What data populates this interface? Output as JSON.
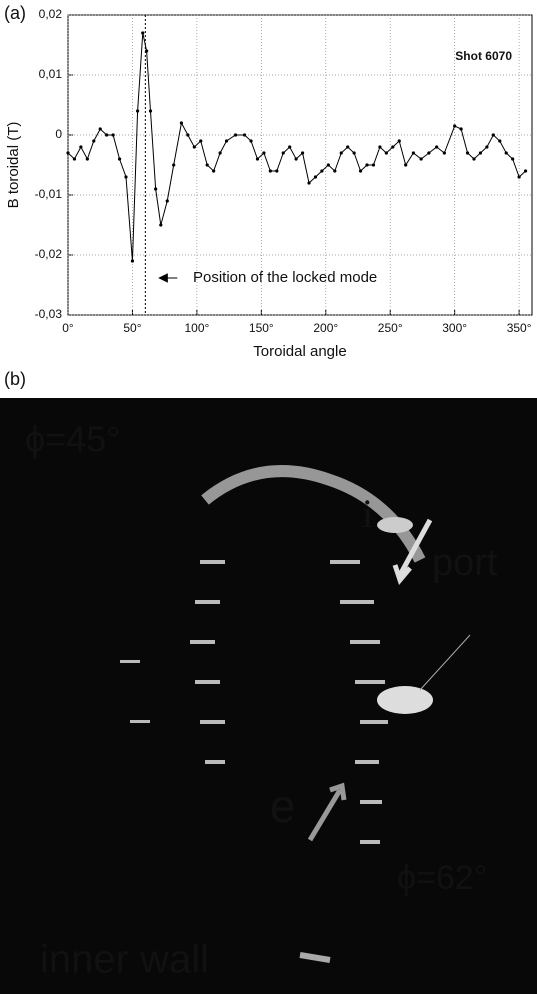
{
  "panel_labels": [
    "(a)",
    "(b)"
  ],
  "chart_data": {
    "type": "line",
    "x_label": "Toroidal angle",
    "y_label": "B toroidal (T)",
    "annotation_text": "Shot  6070",
    "locked_mode": {
      "text": "Position of the locked mode",
      "x": 60
    },
    "xlim": [
      0,
      360
    ],
    "xticks": [
      {
        "value": 0,
        "label": "0°"
      },
      {
        "value": 50,
        "label": "50°"
      },
      {
        "value": 100,
        "label": "100°"
      },
      {
        "value": 150,
        "label": "150°"
      },
      {
        "value": 200,
        "label": "200°"
      },
      {
        "value": 250,
        "label": "250°"
      },
      {
        "value": 300,
        "label": "300°"
      },
      {
        "value": 350,
        "label": "350°"
      }
    ],
    "ylim": [
      -0.03,
      0.02
    ],
    "yticks": [
      {
        "value": -0.03,
        "label": "-0,03"
      },
      {
        "value": -0.02,
        "label": "-0,02"
      },
      {
        "value": -0.01,
        "label": "-0,01"
      },
      0,
      {
        "value": 0.01,
        "label": "0,01"
      },
      {
        "value": 0.02,
        "label": "0,02"
      }
    ],
    "grid": true,
    "color": "#000000",
    "x": [
      0,
      5,
      10,
      15,
      20,
      25,
      30,
      35,
      40,
      45,
      50,
      54,
      58,
      61,
      64,
      68,
      72,
      77,
      82,
      88,
      93,
      98,
      103,
      108,
      113,
      118,
      123,
      130,
      137,
      142,
      147,
      152,
      157,
      162,
      167,
      172,
      177,
      182,
      187,
      192,
      197,
      202,
      207,
      212,
      217,
      222,
      227,
      232,
      237,
      242,
      247,
      252,
      257,
      262,
      268,
      274,
      280,
      286,
      292,
      300,
      305,
      310,
      315,
      320,
      325,
      330,
      335,
      340,
      345,
      350,
      355
    ],
    "values": [
      -0.003,
      -0.004,
      -0.002,
      -0.004,
      -0.001,
      0.001,
      0,
      0,
      -0.004,
      -0.007,
      -0.021,
      0.004,
      0.017,
      0.014,
      0.004,
      -0.009,
      -0.015,
      -0.011,
      -0.005,
      0.002,
      0,
      -0.002,
      -0.001,
      -0.005,
      -0.006,
      -0.003,
      -0.001,
      0,
      0,
      -0.001,
      -0.004,
      -0.003,
      -0.006,
      -0.006,
      -0.003,
      -0.002,
      -0.004,
      -0.003,
      -0.008,
      -0.007,
      -0.006,
      -0.005,
      -0.006,
      -0.003,
      -0.002,
      -0.003,
      -0.006,
      -0.005,
      -0.005,
      -0.002,
      -0.003,
      -0.002,
      -0.001,
      -0.005,
      -0.003,
      -0.004,
      -0.003,
      -0.002,
      -0.003,
      0.0015,
      0.001,
      -0.003,
      -0.004,
      -0.003,
      -0.002,
      0,
      -0.001,
      -0.003,
      -0.004,
      -0.007,
      -0.006
    ]
  },
  "photo": {
    "labels": [
      "ϕ=45°",
      "i",
      "port",
      "e",
      "ϕ=62°",
      "inner wall"
    ]
  }
}
